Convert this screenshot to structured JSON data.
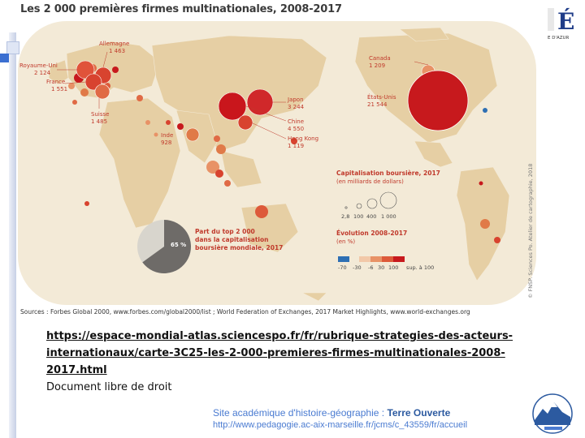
{
  "title": "Les 2 000 premières firmes multinationales, 2008-2017",
  "countries": [
    {
      "id": "allemagne",
      "name": "Allemagne",
      "value": "1 463",
      "color": "#d8432f",
      "r": 10
    },
    {
      "id": "royaume-uni",
      "name": "Royaume-Uni",
      "value": "2 124",
      "color": "#e0533a",
      "r": 11
    },
    {
      "id": "france",
      "name": "France",
      "value": "1 551",
      "color": "#d8432f",
      "r": 10
    },
    {
      "id": "suisse",
      "name": "Suisse",
      "value": "1 485",
      "color": "#e06a45",
      "r": 9
    },
    {
      "id": "inde",
      "name": "Inde",
      "value": "928",
      "color": "#e07a48",
      "r": 8
    },
    {
      "id": "canada",
      "name": "Canada",
      "value": "1 209",
      "color": "#e89266",
      "r": 8
    },
    {
      "id": "etats-unis",
      "name": "États-Unis",
      "value": "21 544",
      "color": "#c7191d",
      "r": 37
    },
    {
      "id": "japon",
      "name": "Japon",
      "value": "3 244",
      "color": "#d0282a",
      "r": 16
    },
    {
      "id": "chine",
      "name": "Chine",
      "value": "4 550",
      "color": "#c9161c",
      "r": 17
    },
    {
      "id": "hong-kong",
      "name": "Hong Kong",
      "value": "1 119",
      "color": "#d8432f",
      "r": 9
    }
  ],
  "legend": {
    "cap_title": "Capitalisation boursière, 2017",
    "cap_subtitle": "(en milliards de dollars)",
    "cap_values": [
      "2,8",
      "100",
      "400",
      "1 000"
    ],
    "evo_title": "Évolution 2008-2017",
    "evo_subtitle": "(en %)",
    "evo_ticks": [
      "-70",
      "-30",
      "-6",
      "30",
      "100",
      "sup. à 100"
    ],
    "evo_colors": [
      "#2e6fb3",
      "#f2c8a8",
      "#e89266",
      "#dd5a3a",
      "#c7191d"
    ]
  },
  "pie": {
    "percent_label": "65 %",
    "share": 65,
    "caption": [
      "Part du top 2 000",
      "dans la capitalisation",
      "boursière mondiale, 2017"
    ]
  },
  "sources": "Sources : Forbes Global 2000, www.forbes.com/global2000/list ; World Federation of Exchanges, 2017 Market Highlights, www.world-exchanges.org",
  "side_credit": "© FNSP. Sciences Po. Atelier de cartographie, 2018",
  "logo_text": "E D'AZUR",
  "link": {
    "url": "https://espace-mondial-atlas.sciencespo.fr/fr/rubrique-strategies-des-acteurs-internationaux/carte-3C25-les-2-000-premieres-firmes-multinationales-2008-2017.html",
    "license": "Document libre de droit"
  },
  "footer": {
    "site_prefix": "Site académique d'histoire-géographie : ",
    "site_name": "Terre Ouverte",
    "site_url": "http://www.pedagogie.ac-aix-marseille.fr/jcms/c_43559/fr/accueil"
  }
}
